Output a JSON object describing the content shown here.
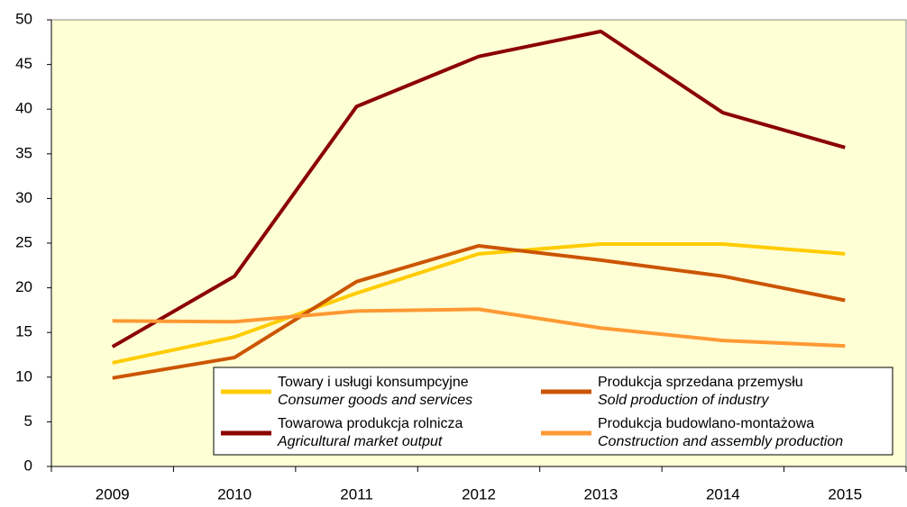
{
  "chart_data": {
    "type": "line",
    "categories": [
      "2009",
      "2010",
      "2011",
      "2012",
      "2013",
      "2014",
      "2015"
    ],
    "series": [
      {
        "name": [
          "Towary i usługi konsumpcyjne",
          "Consumer goods and services"
        ],
        "color": "#ffcc00",
        "values": [
          11.6,
          14.5,
          19.4,
          23.8,
          24.9,
          24.9,
          23.8
        ]
      },
      {
        "name": [
          "Towarowa produkcja rolnicza",
          "Agricultural market output"
        ],
        "color": "#8b0000",
        "values": [
          13.4,
          21.3,
          40.3,
          45.9,
          48.7,
          39.6,
          35.7
        ]
      },
      {
        "name": [
          "Produkcja sprzedana przemysłu",
          "Sold production of industry"
        ],
        "color": "#cc5500",
        "values": [
          9.9,
          12.2,
          20.7,
          24.7,
          23.1,
          21.3,
          18.6
        ]
      },
      {
        "name": [
          "Produkcja budowlano-montażowa",
          "Construction and assembly production"
        ],
        "color": "#ff9933",
        "values": [
          16.3,
          16.2,
          17.4,
          17.6,
          15.5,
          14.1,
          13.5
        ]
      }
    ],
    "ylim": [
      0,
      50
    ],
    "yticks": [
      0,
      5,
      10,
      15,
      20,
      25,
      30,
      35,
      40,
      45,
      50
    ],
    "grid": false,
    "legend": "bottom-right"
  }
}
